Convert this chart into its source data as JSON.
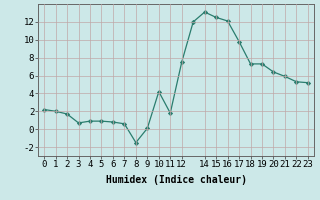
{
  "x": [
    0,
    1,
    2,
    3,
    4,
    5,
    6,
    7,
    8,
    9,
    10,
    11,
    12,
    13,
    14,
    15,
    16,
    17,
    18,
    19,
    20,
    21,
    22,
    23
  ],
  "y": [
    2.2,
    2.0,
    1.7,
    0.7,
    0.9,
    0.9,
    0.8,
    0.6,
    -1.5,
    0.1,
    4.2,
    1.8,
    7.5,
    12.0,
    13.1,
    12.5,
    12.1,
    9.8,
    7.3,
    7.3,
    6.4,
    5.9,
    5.3,
    5.2
  ],
  "line_color": "#2a7d6e",
  "marker": "D",
  "marker_size": 2.2,
  "bg_color": "#cce8e8",
  "grid_color": "#c0a8a8",
  "xlabel": "Humidex (Indice chaleur)",
  "xlabel_fontsize": 7,
  "tick_fontsize": 6.5,
  "ylim": [
    -3.0,
    14.0
  ],
  "yticks": [
    -2,
    0,
    2,
    4,
    6,
    8,
    10,
    12
  ],
  "xtick_positions": [
    0,
    1,
    2,
    3,
    4,
    5,
    6,
    7,
    8,
    9,
    10,
    11,
    12,
    14,
    15,
    16,
    17,
    18,
    19,
    20,
    21,
    22,
    23
  ],
  "xtick_labels": [
    "0",
    "1",
    "2",
    "3",
    "4",
    "5",
    "6",
    "7",
    "8",
    "9",
    "10",
    "11",
    "12",
    "14",
    "15",
    "16",
    "17",
    "18",
    "19",
    "20",
    "21",
    "22",
    "23"
  ],
  "xlim": [
    -0.5,
    23.5
  ]
}
